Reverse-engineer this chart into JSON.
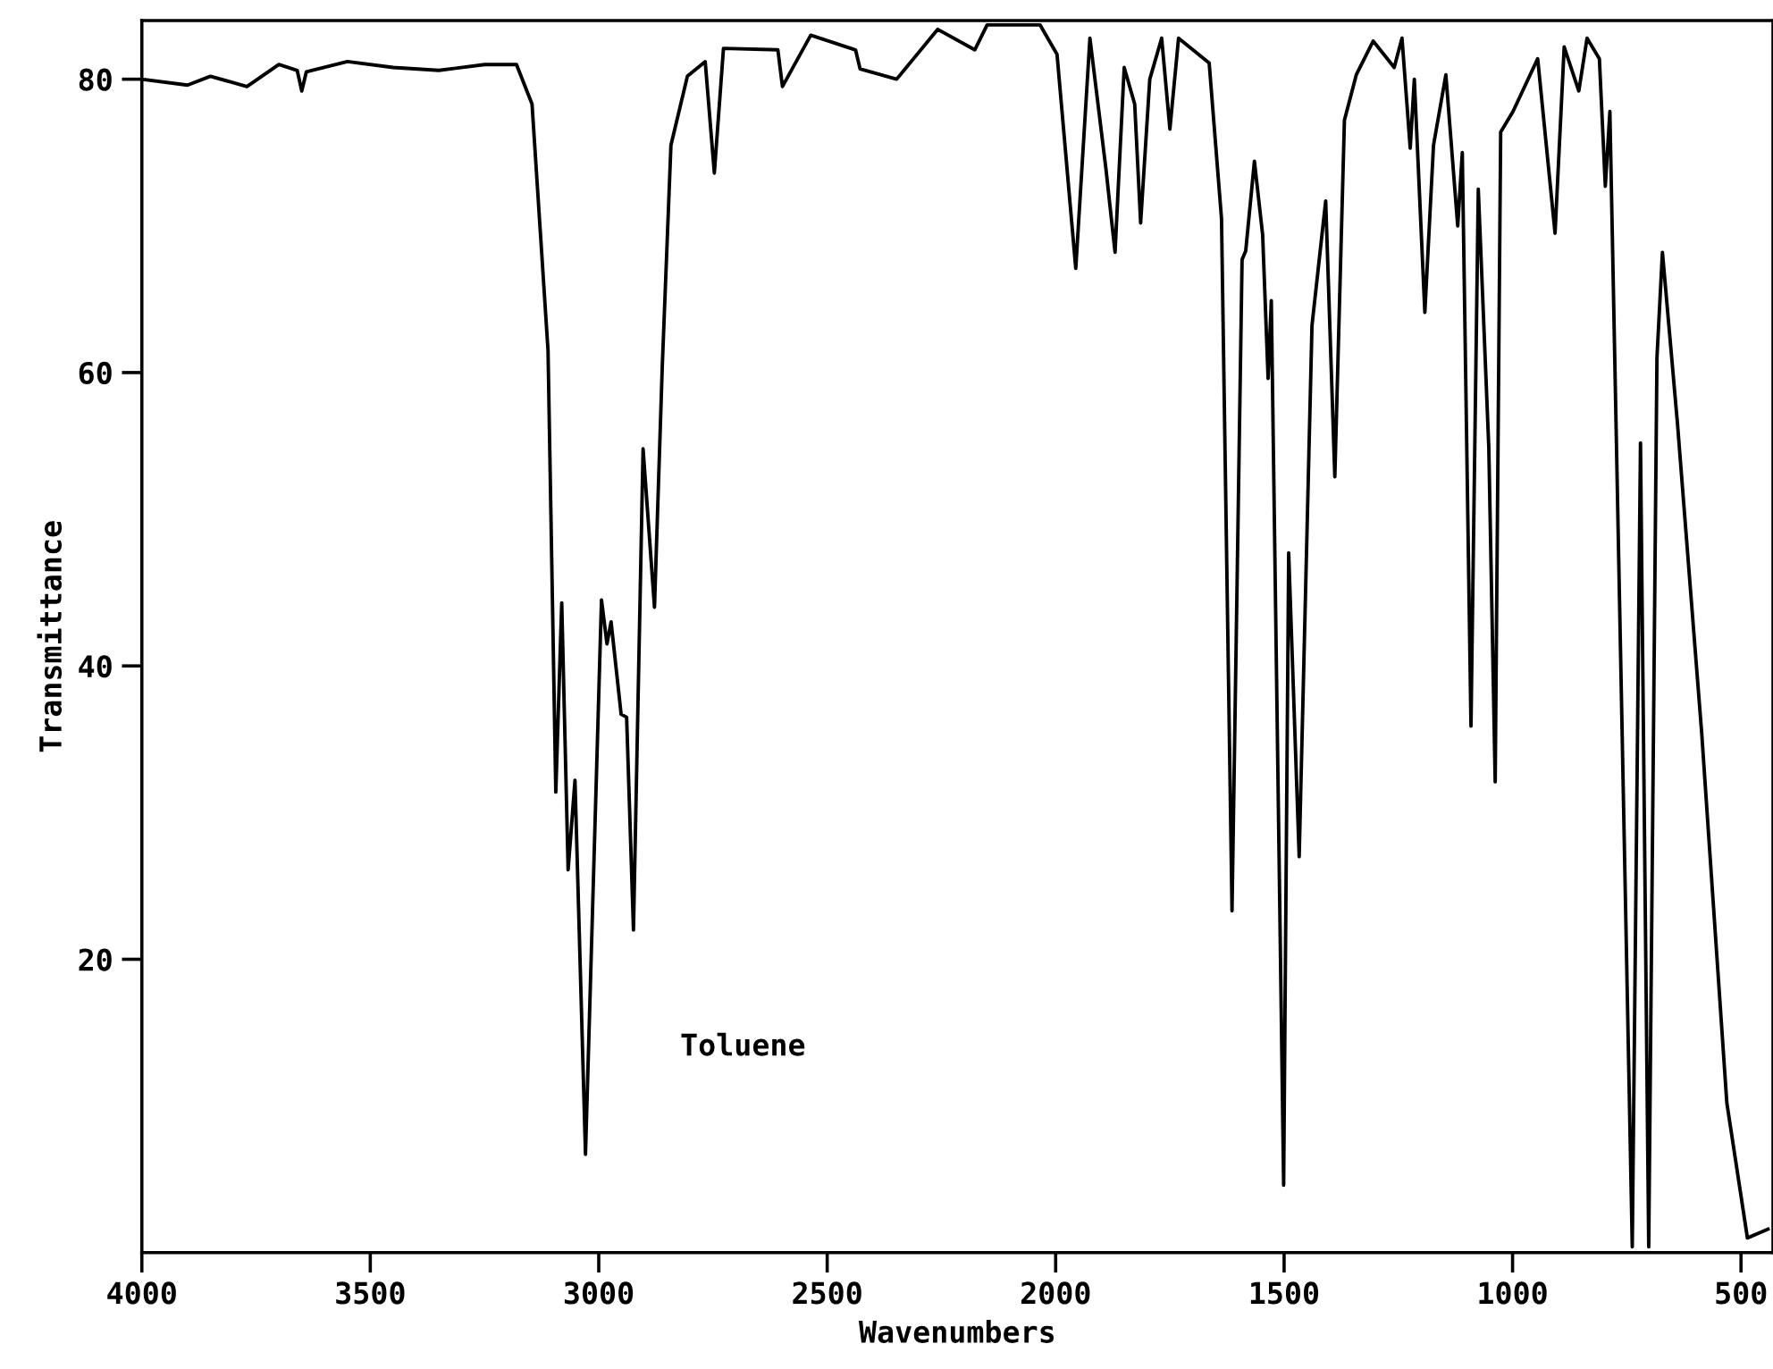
{
  "chart_data": {
    "type": "line",
    "xlabel": "Wavenumbers",
    "ylabel": "Transmittance",
    "annotations": [
      "Toluene"
    ],
    "xlim": [
      4000,
      430
    ],
    "ylim": [
      0,
      84
    ],
    "xticks": [
      4000,
      3500,
      3000,
      2500,
      2000,
      1500,
      1000,
      500
    ],
    "yticks": [
      20,
      40,
      60,
      80
    ],
    "grid": false,
    "legend": false,
    "marker": "none",
    "line_style": "solid",
    "series": [
      {
        "color": "#000000",
        "x": [
          4000,
          3900,
          3850,
          3770,
          3700,
          3660,
          3650,
          3640,
          3550,
          3450,
          3350,
          3250,
          3180,
          3146,
          3111,
          3094,
          3081,
          3067,
          3052,
          3029,
          2994,
          2982,
          2973,
          2951,
          2939,
          2924,
          2903,
          2878,
          2861,
          2842,
          2806,
          2767,
          2747,
          2727,
          2608,
          2598,
          2536,
          2438,
          2428,
          2348,
          2258,
          2177,
          2150,
          2034,
          1997,
          1956,
          1925,
          1890,
          1870,
          1850,
          1827,
          1814,
          1794,
          1768,
          1750,
          1731,
          1664,
          1637,
          1614,
          1592,
          1584,
          1565,
          1547,
          1535,
          1528,
          1501,
          1490,
          1467,
          1439,
          1409,
          1389,
          1368,
          1342,
          1305,
          1259,
          1242,
          1224,
          1215,
          1192,
          1173,
          1146,
          1120,
          1110,
          1091,
          1075,
          1052,
          1038,
          1026,
          999,
          945,
          907,
          887,
          855,
          837,
          810,
          797,
          787,
          738,
          720,
          702,
          684,
          672,
          639,
          586,
          531,
          486,
          441
        ],
        "values": [
          80,
          79.6,
          80.2,
          79.5,
          81,
          80.6,
          79.2,
          80.5,
          81.2,
          80.8,
          80.6,
          81,
          81,
          78.3,
          61.5,
          31.4,
          44.3,
          26.1,
          32.2,
          6.7,
          44.5,
          41.5,
          43,
          36.7,
          36.5,
          22,
          54.8,
          44,
          60.4,
          75.5,
          80.2,
          81.2,
          73.6,
          82.1,
          82,
          79.5,
          83,
          82,
          80.7,
          80,
          83.4,
          82,
          83.7,
          83.7,
          81.7,
          67.1,
          82.8,
          73.9,
          68.2,
          80.8,
          78.3,
          70.2,
          80,
          82.8,
          76.6,
          82.8,
          81.1,
          70.5,
          23.3,
          67.7,
          68.3,
          74.4,
          69.4,
          59.6,
          64.9,
          4.6,
          47.7,
          27,
          63.2,
          71.7,
          52.9,
          77.2,
          80.3,
          82.6,
          80.8,
          82.8,
          75.3,
          80,
          64.1,
          75.5,
          80.3,
          70,
          75,
          35.9,
          72.5,
          54.9,
          32.1,
          76.4,
          77.8,
          81.4,
          69.5,
          82.2,
          79.2,
          82.8,
          81.4,
          72.7,
          77.8,
          0.4,
          55.2,
          0.4,
          61,
          68.2,
          56.5,
          35.4,
          10.2,
          1,
          1.6
        ]
      }
    ]
  }
}
